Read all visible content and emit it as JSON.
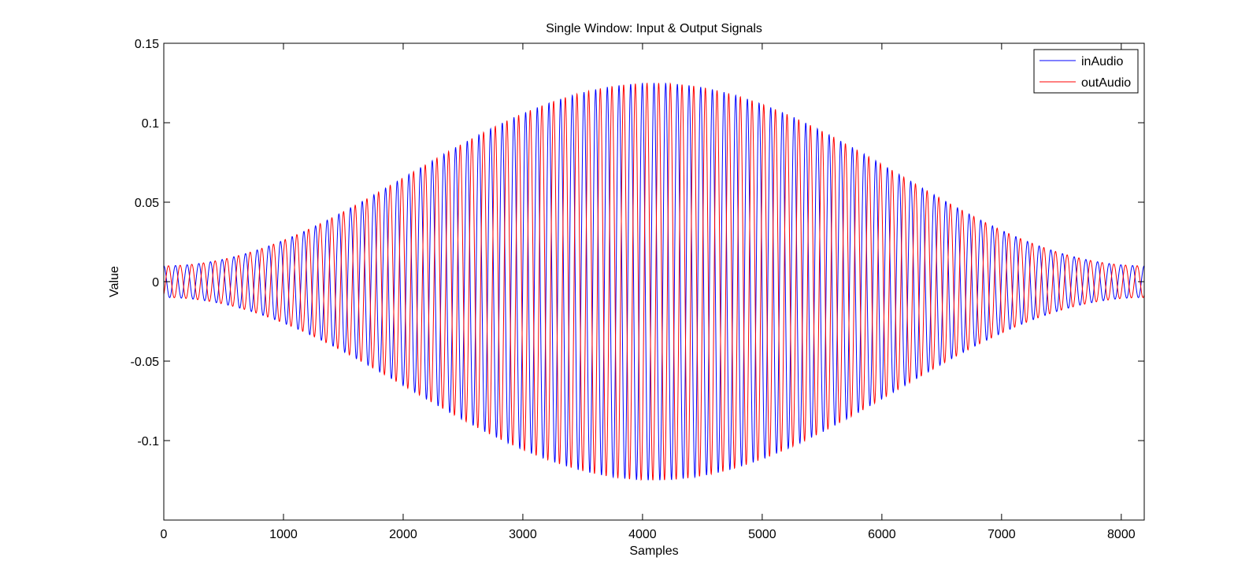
{
  "chart_data": {
    "type": "line",
    "title": "Single Window: Input & Output Signals",
    "xlabel": "Samples",
    "ylabel": "Value",
    "xlim": [
      0,
      8192
    ],
    "ylim": [
      -0.15,
      0.15
    ],
    "xticks": [
      0,
      1000,
      2000,
      3000,
      4000,
      5000,
      6000,
      7000,
      8000
    ],
    "xtick_labels": [
      "0",
      "1000",
      "2000",
      "3000",
      "4000",
      "5000",
      "6000",
      "7000",
      "8000"
    ],
    "yticks": [
      -0.1,
      -0.05,
      0,
      0.05,
      0.1,
      0.15
    ],
    "ytick_labels": [
      "-0.1",
      "-0.05",
      "0",
      "0.05",
      "0.1",
      "0.15"
    ],
    "grid": false,
    "legend_position": "top-right",
    "series": [
      {
        "name": "inAudio",
        "color": "#0000ff",
        "signal": {
          "form": "windowed-sine",
          "samples": 8192,
          "cycles": 84,
          "peak_amplitude": 0.125,
          "edge_amplitude": 0.01,
          "phase_cycles": 0.25
        }
      },
      {
        "name": "outAudio",
        "color": "#ff0000",
        "signal": {
          "form": "windowed-sine",
          "samples": 8192,
          "cycles": 84,
          "peak_amplitude": 0.125,
          "edge_amplitude": 0.01,
          "phase_cycles": -0.15
        }
      }
    ]
  }
}
